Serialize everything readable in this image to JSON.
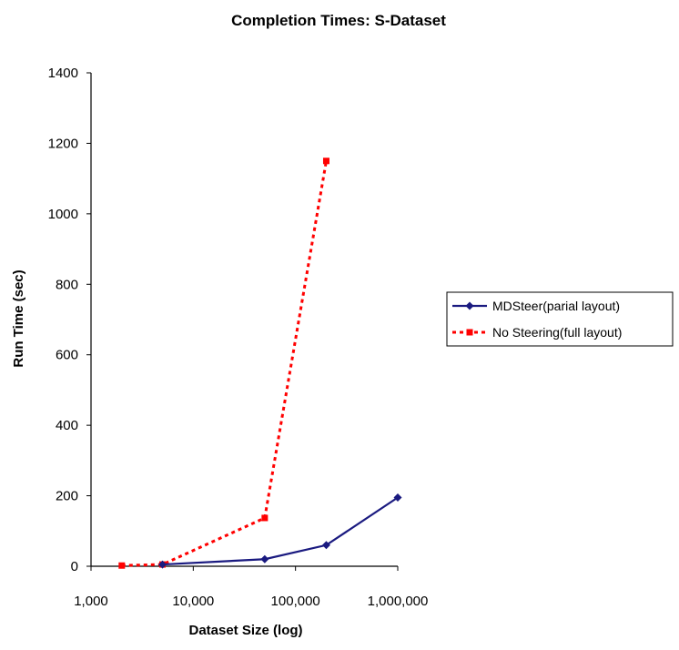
{
  "chart_data": {
    "type": "line",
    "title": "Completion Times: S-Dataset",
    "xlabel": "Dataset Size (log)",
    "ylabel": "Run Time (sec)",
    "xscale": "log",
    "xlim": [
      1000,
      1000000
    ],
    "ylim": [
      0,
      1400
    ],
    "x_ticks": [
      1000,
      10000,
      100000,
      1000000
    ],
    "x_tick_labels": [
      "1,000",
      "10,000",
      "100,000",
      "1,000,000"
    ],
    "y_ticks": [
      0,
      200,
      400,
      600,
      800,
      1000,
      1200,
      1400
    ],
    "y_tick_labels": [
      "0",
      "200",
      "400",
      "600",
      "800",
      "1000",
      "1200",
      "1400"
    ],
    "grid": false,
    "legend_position": "right",
    "series": [
      {
        "name": "MDSteer(parial layout)",
        "color": "#1a1a80",
        "line_style": "solid",
        "marker": "diamond",
        "x": [
          5000,
          50000,
          200000,
          1000000
        ],
        "y": [
          5,
          20,
          60,
          195
        ]
      },
      {
        "name": "No Steering(full layout)",
        "color": "#ff0000",
        "line_style": "dotted",
        "marker": "square",
        "x": [
          2000,
          5000,
          50000,
          200000
        ],
        "y": [
          2,
          5,
          137,
          1150
        ]
      }
    ]
  }
}
